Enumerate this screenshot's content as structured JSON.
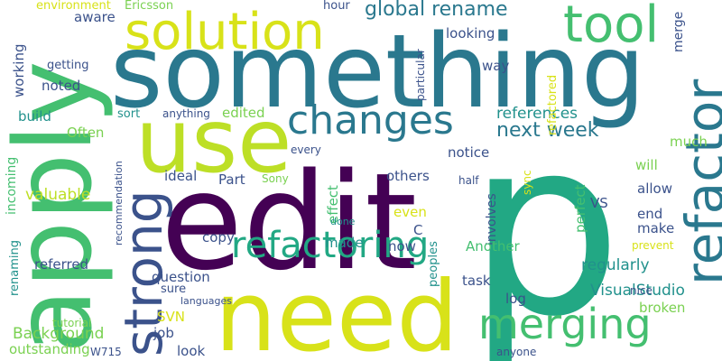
{
  "background": "#ffffff",
  "palette": [
    "#440154",
    "#3b528b",
    "#2a788e",
    "#21918c",
    "#22a884",
    "#44bf70",
    "#7ad151",
    "#bddf26",
    "#fde725"
  ],
  "words": [
    {
      "text": "p",
      "color": "#22a884"
    },
    {
      "text": "edit",
      "color": "#440154"
    },
    {
      "text": "something",
      "color": "#2a788e"
    },
    {
      "text": "need",
      "color": "#d8e219"
    },
    {
      "text": "apply",
      "color": "#44bf70"
    },
    {
      "text": "use",
      "color": "#bddf26"
    },
    {
      "text": "refactor",
      "color": "#2a788e"
    },
    {
      "text": "strong",
      "color": "#3b528b"
    },
    {
      "text": "solution",
      "color": "#d8e219"
    },
    {
      "text": "tool",
      "color": "#44bf70"
    },
    {
      "text": "changes",
      "color": "#2a788e"
    },
    {
      "text": "merging",
      "color": "#44bf70"
    },
    {
      "text": "refactoring",
      "color": "#22a884"
    },
    {
      "text": "next week",
      "color": "#2a788e"
    },
    {
      "text": "global rename",
      "color": "#2a788e"
    },
    {
      "text": "Background",
      "color": "#7ad151"
    },
    {
      "text": "VisualStudio",
      "color": "#21918c"
    },
    {
      "text": "valuable",
      "color": "#bddf26"
    },
    {
      "text": "references",
      "color": "#21918c"
    },
    {
      "text": "regularly",
      "color": "#21918c"
    },
    {
      "text": "environment",
      "color": "#d8e219"
    },
    {
      "text": "Ericsson",
      "color": "#7ad151"
    },
    {
      "text": "hour",
      "color": "#3b528b"
    },
    {
      "text": "particular",
      "color": "#3b528b"
    },
    {
      "text": "refactored",
      "color": "#d8e219"
    },
    {
      "text": "merge",
      "color": "#3b528b"
    },
    {
      "text": "aware",
      "color": "#3b528b"
    },
    {
      "text": "looking",
      "color": "#3b528b"
    },
    {
      "text": "way",
      "color": "#3b528b"
    },
    {
      "text": "working",
      "color": "#3b528b"
    },
    {
      "text": "getting",
      "color": "#3b528b"
    },
    {
      "text": "noted",
      "color": "#3b528b"
    },
    {
      "text": "build",
      "color": "#21918c"
    },
    {
      "text": "sort",
      "color": "#21918c"
    },
    {
      "text": "anything",
      "color": "#3b528b"
    },
    {
      "text": "edited",
      "color": "#7ad151"
    },
    {
      "text": "Often",
      "color": "#7ad151"
    },
    {
      "text": "much",
      "color": "#7ad151"
    },
    {
      "text": "notice",
      "color": "#3b528b"
    },
    {
      "text": "every",
      "color": "#3b528b"
    },
    {
      "text": "will",
      "color": "#7ad151"
    },
    {
      "text": "recommendation",
      "color": "#3b528b"
    },
    {
      "text": "incoming",
      "color": "#44bf70"
    },
    {
      "text": "ideal",
      "color": "#3b528b"
    },
    {
      "text": "Part",
      "color": "#3b528b"
    },
    {
      "text": "Sony",
      "color": "#7ad151"
    },
    {
      "text": "others",
      "color": "#3b528b"
    },
    {
      "text": "half",
      "color": "#3b528b"
    },
    {
      "text": "sync",
      "color": "#d8e219"
    },
    {
      "text": "allow",
      "color": "#3b528b"
    },
    {
      "text": "effect",
      "color": "#44bf70"
    },
    {
      "text": "involves",
      "color": "#3b528b"
    },
    {
      "text": "perfect",
      "color": "#44bf70"
    },
    {
      "text": "VS",
      "color": "#3b528b"
    },
    {
      "text": "even",
      "color": "#d8e219"
    },
    {
      "text": "end",
      "color": "#3b528b"
    },
    {
      "text": "copy",
      "color": "#3b528b"
    },
    {
      "text": "made",
      "color": "#21918c"
    },
    {
      "text": "C",
      "color": "#3b528b"
    },
    {
      "text": "make",
      "color": "#3b528b"
    },
    {
      "text": "done",
      "color": "#21918c"
    },
    {
      "text": "now",
      "color": "#3b528b"
    },
    {
      "text": "Another",
      "color": "#44bf70"
    },
    {
      "text": "referred",
      "color": "#3b528b"
    },
    {
      "text": "prevent",
      "color": "#d8e219"
    },
    {
      "text": "renaming",
      "color": "#21918c"
    },
    {
      "text": "peoples",
      "color": "#21918c"
    },
    {
      "text": "question",
      "color": "#3b528b"
    },
    {
      "text": "sure",
      "color": "#3b528b"
    },
    {
      "text": "task",
      "color": "#3b528b"
    },
    {
      "text": "languages",
      "color": "#3b528b"
    },
    {
      "text": "nice",
      "color": "#3b528b"
    },
    {
      "text": "log",
      "color": "#3b528b"
    },
    {
      "text": "broken",
      "color": "#7ad151"
    },
    {
      "text": "SVN",
      "color": "#d8e219"
    },
    {
      "text": "tutorial",
      "color": "#7ad151"
    },
    {
      "text": "job",
      "color": "#3b528b"
    },
    {
      "text": "outstanding",
      "color": "#7ad151"
    },
    {
      "text": "W715",
      "color": "#3b528b"
    },
    {
      "text": "look",
      "color": "#3b528b"
    },
    {
      "text": "anyone",
      "color": "#3b528b"
    }
  ]
}
